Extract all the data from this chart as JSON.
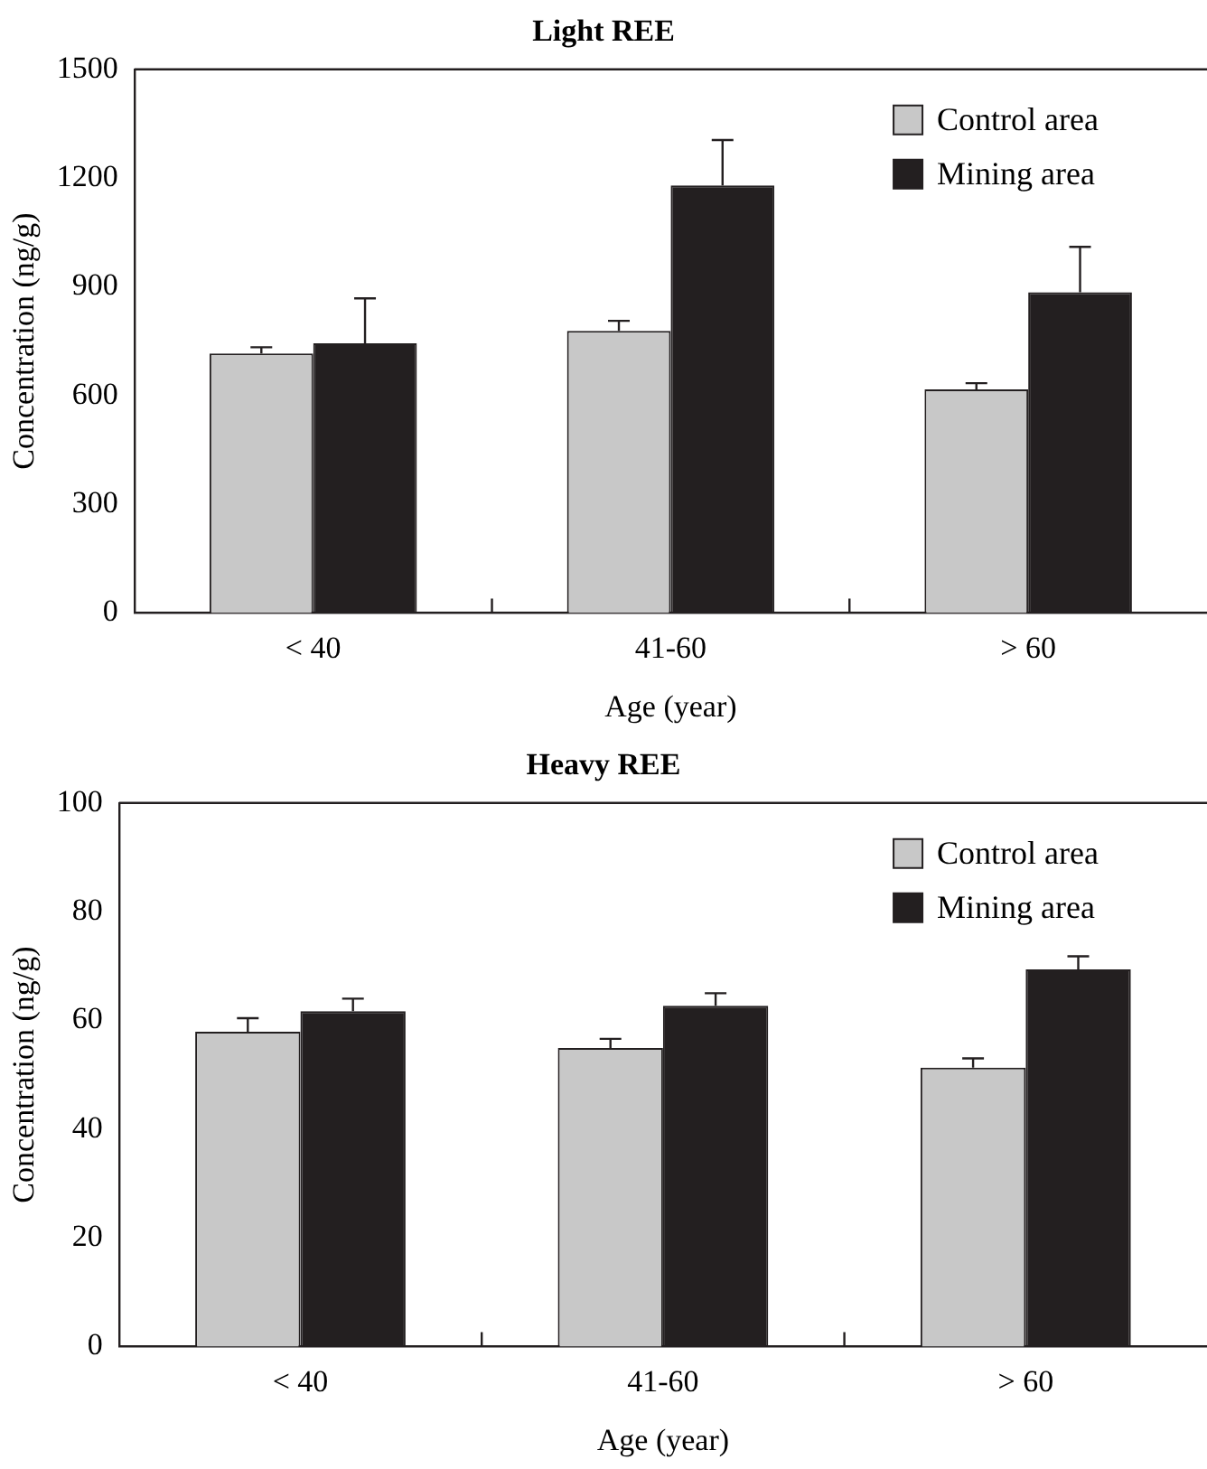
{
  "chart_data": [
    {
      "type": "bar",
      "title": "Light REE",
      "xlabel": "Age (year)",
      "ylabel": "Concentration (ng/g)",
      "categories": [
        "< 40",
        "41-60",
        "> 60"
      ],
      "series": [
        {
          "name": "Control area",
          "color": "#c8c8c8",
          "values": [
            716,
            778,
            617
          ],
          "errors": [
            [
              716,
              733
            ],
            [
              778,
              806
            ],
            [
              617,
              634
            ]
          ]
        },
        {
          "name": "Mining area",
          "color": "#231f20",
          "values": [
            744,
            1180,
            885
          ],
          "errors": [
            [
              744,
              868
            ],
            [
              1180,
              1305
            ],
            [
              885,
              1010
            ]
          ]
        }
      ],
      "ylim": [
        0,
        1500
      ],
      "yticks": [
        0,
        300,
        600,
        900,
        1200,
        1500
      ],
      "grid": false,
      "legend": "top right"
    },
    {
      "type": "bar",
      "title": "Heavy REE",
      "xlabel": "Age (year)",
      "ylabel": "Concentration (ng/g)",
      "categories": [
        "< 40",
        "41-60",
        "> 60"
      ],
      "series": [
        {
          "name": "Control area",
          "color": "#c8c8c8",
          "values": [
            57.9,
            54.9,
            51.3
          ],
          "errors": [
            [
              57.9,
              60.4
            ],
            [
              54.9,
              56.6
            ],
            [
              51.3,
              53.0
            ]
          ]
        },
        {
          "name": "Mining area",
          "color": "#231f20",
          "values": [
            61.7,
            62.7,
            69.4
          ],
          "errors": [
            [
              61.7,
              64.0
            ],
            [
              62.7,
              65.0
            ],
            [
              69.4,
              71.8
            ]
          ]
        }
      ],
      "ylim": [
        0,
        100
      ],
      "yticks": [
        0,
        20,
        40,
        60,
        80,
        100
      ],
      "grid": false,
      "legend": "top right"
    }
  ]
}
